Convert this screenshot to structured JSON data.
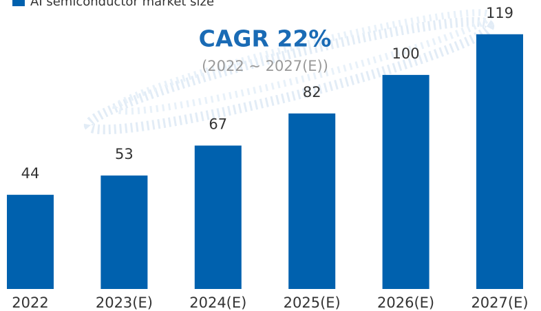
{
  "chart_data": {
    "type": "bar",
    "legend": "AI semiconductor market size",
    "annotation": "CAGR 22%",
    "annotation_sub": "(2022 ~ 2027(E))",
    "categories": [
      "2022",
      "2023(E)",
      "2024(E)",
      "2025(E)",
      "2026(E)",
      "2027(E)"
    ],
    "values": [
      44,
      53,
      67,
      82,
      100,
      119
    ],
    "color": "#0061ae",
    "ylim": [
      0,
      135
    ]
  }
}
